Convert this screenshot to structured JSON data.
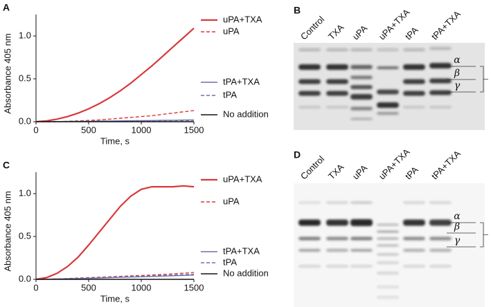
{
  "chart_data": [
    {
      "type": "line",
      "label": "A",
      "xlabel": "Time, s",
      "ylabel": "Absorbance 405 nm",
      "x": [
        0,
        100,
        200,
        300,
        400,
        500,
        600,
        700,
        800,
        900,
        1000,
        1100,
        1200,
        1300,
        1400,
        1500
      ],
      "series": [
        {
          "name": "uPA+TXA",
          "color": "#d8383a",
          "dash": false,
          "values": [
            0,
            0.01,
            0.03,
            0.06,
            0.1,
            0.15,
            0.21,
            0.28,
            0.36,
            0.45,
            0.55,
            0.65,
            0.76,
            0.87,
            0.98,
            1.09
          ]
        },
        {
          "name": "uPA",
          "color": "#d8383a",
          "dash": true,
          "values": [
            0,
            0,
            0,
            0.005,
            0.01,
            0.015,
            0.02,
            0.03,
            0.04,
            0.05,
            0.06,
            0.07,
            0.085,
            0.1,
            0.115,
            0.13
          ]
        },
        {
          "name": "tPA+TXA",
          "color": "#6f6fae",
          "dash": false,
          "values": [
            0,
            0,
            0.002,
            0.003,
            0.004,
            0.005,
            0.007,
            0.008,
            0.01,
            0.011,
            0.013,
            0.014,
            0.016,
            0.017,
            0.019,
            0.02
          ]
        },
        {
          "name": "tPA",
          "color": "#6f6fae",
          "dash": true,
          "values": [
            0,
            0,
            0.001,
            0.002,
            0.003,
            0.004,
            0.005,
            0.006,
            0.007,
            0.008,
            0.009,
            0.01,
            0.011,
            0.012,
            0.013,
            0.015
          ]
        },
        {
          "name": "No addition",
          "color": "#111111",
          "dash": false,
          "values": [
            0,
            0,
            0,
            0,
            0,
            0,
            0,
            0,
            0,
            0,
            0,
            0,
            0,
            0,
            0,
            0
          ]
        }
      ],
      "xlim": [
        0,
        1500
      ],
      "ylim": [
        0,
        1.25
      ],
      "xticks": [
        0,
        500,
        1000,
        1500
      ],
      "yticks": [
        {
          "value": 0,
          "label": "0.0"
        },
        {
          "value": 0.5,
          "label": "0.5"
        },
        {
          "value": 1,
          "label": "1.0"
        }
      ]
    },
    {
      "type": "line",
      "label": "C",
      "xlabel": "Time, s",
      "ylabel": "Absorbance 405 nm",
      "x": [
        0,
        100,
        200,
        300,
        400,
        500,
        600,
        700,
        800,
        900,
        1000,
        1100,
        1200,
        1300,
        1400,
        1500
      ],
      "series": [
        {
          "name": "uPA+TXA",
          "color": "#d8383a",
          "dash": false,
          "values": [
            0,
            0.02,
            0.07,
            0.15,
            0.26,
            0.4,
            0.55,
            0.7,
            0.85,
            0.97,
            1.05,
            1.08,
            1.08,
            1.08,
            1.09,
            1.08
          ]
        },
        {
          "name": "uPA",
          "color": "#d8383a",
          "dash": true,
          "values": [
            0,
            0.002,
            0.005,
            0.01,
            0.015,
            0.02,
            0.025,
            0.03,
            0.035,
            0.04,
            0.045,
            0.05,
            0.057,
            0.064,
            0.072,
            0.08
          ]
        },
        {
          "name": "tPA+TXA",
          "color": "#6f6fae",
          "dash": false,
          "values": [
            0,
            0.002,
            0.004,
            0.007,
            0.01,
            0.013,
            0.016,
            0.02,
            0.023,
            0.027,
            0.03,
            0.034,
            0.038,
            0.042,
            0.046,
            0.05
          ]
        },
        {
          "name": "tPA",
          "color": "#6f6fae",
          "dash": true,
          "values": [
            0,
            0.002,
            0.005,
            0.008,
            0.012,
            0.016,
            0.02,
            0.024,
            0.028,
            0.032,
            0.036,
            0.04,
            0.045,
            0.05,
            0.055,
            0.06
          ]
        },
        {
          "name": "No addition",
          "color": "#111111",
          "dash": false,
          "values": [
            0,
            0,
            0,
            0,
            0,
            0,
            0,
            0,
            0,
            0,
            0,
            0,
            0,
            0,
            0,
            0
          ]
        }
      ],
      "xlim": [
        0,
        1500
      ],
      "ylim": [
        0,
        1.25
      ],
      "xticks": [
        0,
        500,
        1000,
        1500
      ],
      "yticks": [
        {
          "value": 0,
          "label": "0.0"
        },
        {
          "value": 0.5,
          "label": "0.5"
        },
        {
          "value": 1,
          "label": "1.0"
        }
      ]
    }
  ],
  "gels": [
    {
      "label": "B",
      "lanes": [
        "Control",
        "TXA",
        "uPA",
        "uPA+TXA",
        "tPA",
        "tPA+TXA"
      ],
      "bands": [
        "α",
        "β",
        "γ"
      ]
    },
    {
      "label": "D",
      "lanes": [
        "Control",
        "TXA",
        "uPA",
        "uPA+TXA",
        "tPA",
        "tPA+TXA"
      ],
      "bands": [
        "α",
        "β",
        "γ"
      ]
    }
  ]
}
